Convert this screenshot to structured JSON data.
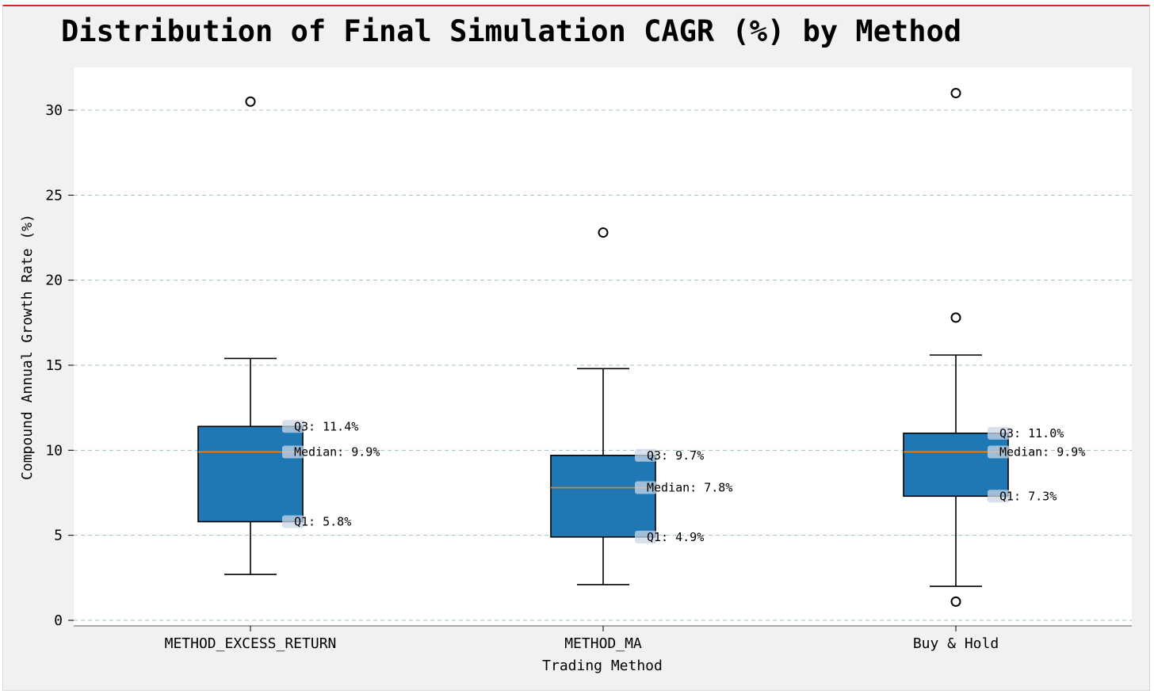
{
  "chart_data": {
    "type": "box",
    "title": "Distribution of Final Simulation CAGR (%) by Method",
    "xlabel": "Trading Method",
    "ylabel": "Compound Annual Growth Rate (%)",
    "ylim": [
      -0.3,
      32.5
    ],
    "yticks": [
      0,
      5,
      10,
      15,
      20,
      25,
      30
    ],
    "grid": "y-dashed",
    "box_color": "#1f77b4",
    "median_color": "#ff7f0e",
    "grid_color": "#9fbfbf",
    "categories": [
      "METHOD_EXCESS_RETURN",
      "METHOD_MA",
      "Buy & Hold"
    ],
    "boxes": [
      {
        "name": "METHOD_EXCESS_RETURN",
        "whisker_low": 2.7,
        "q1": 5.8,
        "median": 9.9,
        "q3": 11.4,
        "whisker_high": 15.4,
        "outliers": [
          30.5
        ],
        "labels": {
          "q3": "Q3: 11.4%",
          "median": "Median: 9.9%",
          "q1": "Q1: 5.8%"
        }
      },
      {
        "name": "METHOD_MA",
        "whisker_low": 2.1,
        "q1": 4.9,
        "median": 7.8,
        "q3": 9.7,
        "whisker_high": 14.8,
        "outliers": [
          22.8
        ],
        "labels": {
          "q3": "Q3: 9.7%",
          "median": "Median: 7.8%",
          "q1": "Q1: 4.9%"
        }
      },
      {
        "name": "Buy & Hold",
        "whisker_low": 2.0,
        "q1": 7.3,
        "median": 9.9,
        "q3": 11.0,
        "whisker_high": 15.6,
        "outliers": [
          31.0,
          17.8,
          1.1
        ],
        "labels": {
          "q3": "Q3: 11.0%",
          "median": "Median: 9.9%",
          "q1": "Q1: 7.3%"
        }
      }
    ]
  }
}
